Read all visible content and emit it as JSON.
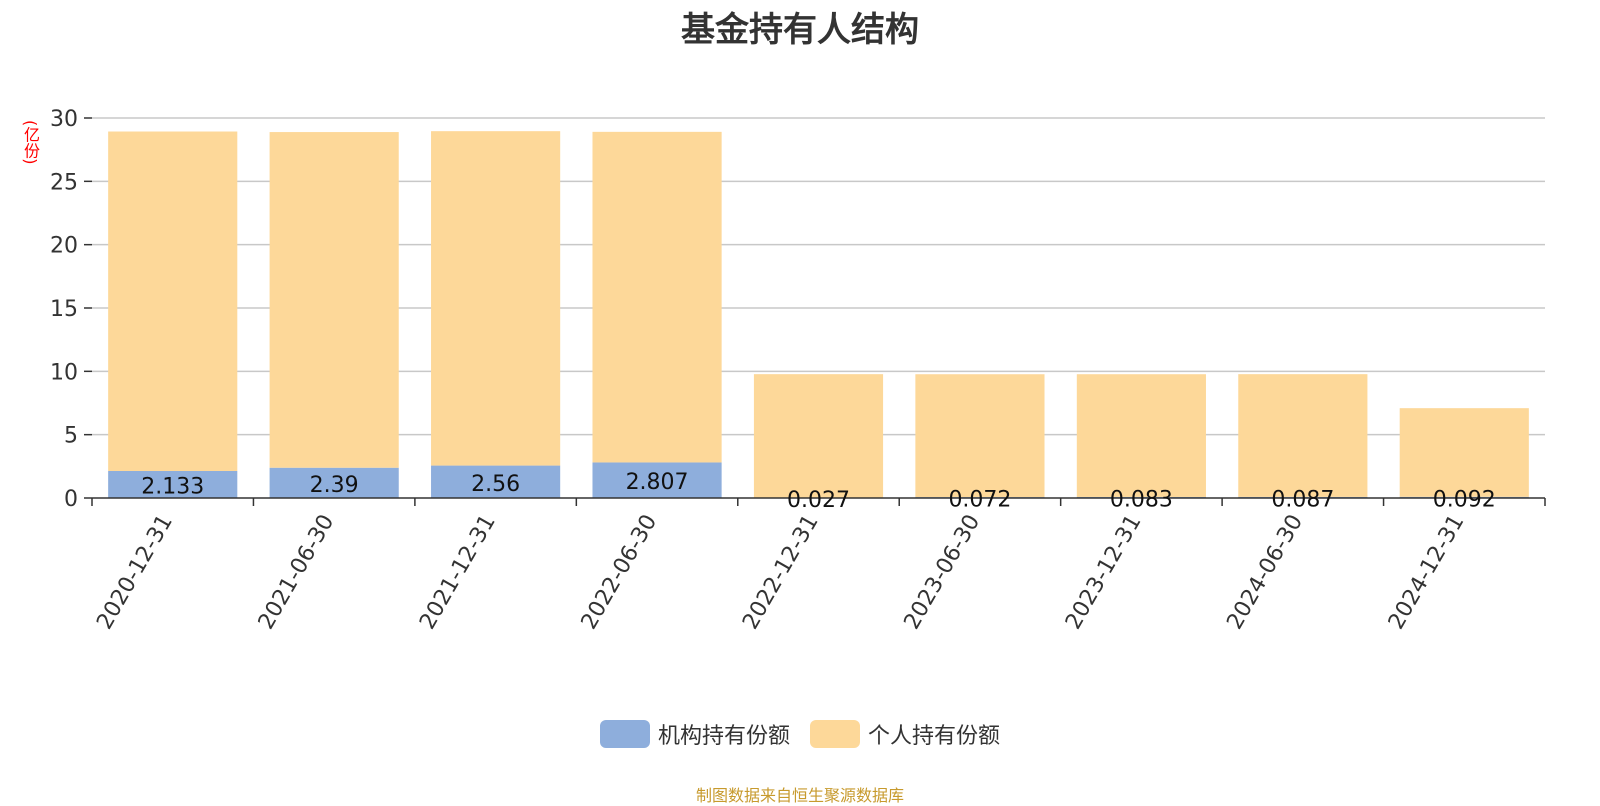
{
  "chart_data": {
    "type": "bar",
    "stacked": true,
    "title": "基金持有人结构",
    "ylabel": "(亿份)",
    "ylim": [
      0,
      30
    ],
    "yticks": [
      0,
      5,
      10,
      15,
      20,
      25,
      30
    ],
    "grid": true,
    "legend_position": "bottom",
    "categories": [
      "2020-12-31",
      "2021-06-30",
      "2021-12-31",
      "2022-06-30",
      "2022-12-31",
      "2023-06-30",
      "2023-12-31",
      "2024-06-30",
      "2024-12-31"
    ],
    "series": [
      {
        "name": "机构持有份额",
        "color": "#8eaedc",
        "values": [
          2.133,
          2.39,
          2.56,
          2.807,
          0.027,
          0.072,
          0.083,
          0.087,
          0.092
        ],
        "labels": [
          "2.133",
          "2.39",
          "2.56",
          "2.807",
          "0.027",
          "0.072",
          "0.083",
          "0.087",
          "0.092"
        ]
      },
      {
        "name": "个人持有份额",
        "color": "#fdd899",
        "values": [
          26.8,
          26.5,
          26.4,
          26.1,
          9.75,
          9.7,
          9.69,
          9.69,
          7.0
        ]
      }
    ]
  },
  "source_note": "制图数据来自恒生聚源数据库"
}
